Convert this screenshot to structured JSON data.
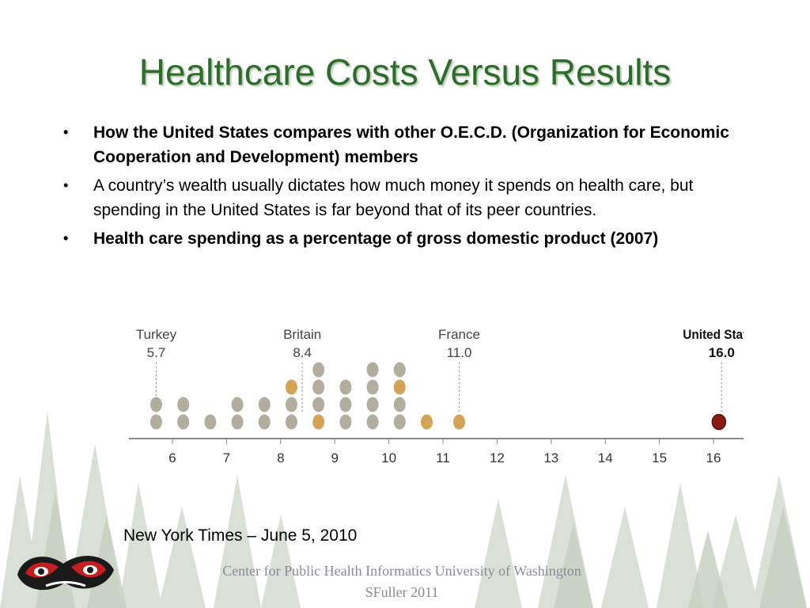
{
  "slide": {
    "title": "Healthcare Costs Versus Results",
    "bullets": [
      {
        "text": "How the United States compares with other O.E.C.D. (Organization for Economic Cooperation and Development) members",
        "bold": true
      },
      {
        "text": "A country’s wealth usually dictates how much money it spends on health care, but spending in the United States is far beyond that of its peer countries.",
        "bold": false
      },
      {
        "text": "Health care spending as a percentage of gross domestic product (2007)",
        "bold": true
      }
    ],
    "source": "New York Times – June 5, 2010",
    "footer_line1": "Center for Public Health Informatics University of Washington",
    "footer_line2": "SFuller 2011",
    "bullet_glyph": "•"
  },
  "colors": {
    "title": "#2f6b2c",
    "dot_gray": "#b3ad9f",
    "dot_highlight": "#d3a356",
    "dot_us": "#8b1a14"
  },
  "chart_data": {
    "type": "scatter",
    "subtype": "dot-strip",
    "xlim": [
      5.5,
      16.5
    ],
    "xticks": [
      6,
      7,
      8,
      9,
      10,
      11,
      12,
      13,
      14,
      15,
      16
    ],
    "points": [
      {
        "x": 5.7,
        "count": 2,
        "highlight": 0
      },
      {
        "x": 6.2,
        "count": 2,
        "highlight": 0
      },
      {
        "x": 6.7,
        "count": 1,
        "highlight": 0
      },
      {
        "x": 7.2,
        "count": 2,
        "highlight": 0
      },
      {
        "x": 7.7,
        "count": 2,
        "highlight": 0
      },
      {
        "x": 8.2,
        "count": 3,
        "highlight": 3
      },
      {
        "x": 8.7,
        "count": 4,
        "highlight": 1
      },
      {
        "x": 9.2,
        "count": 3,
        "highlight": 0
      },
      {
        "x": 9.7,
        "count": 4,
        "highlight": 0
      },
      {
        "x": 10.2,
        "count": 4,
        "highlight": 3
      },
      {
        "x": 10.7,
        "count": 1,
        "highlight": 1
      },
      {
        "x": 11.3,
        "count": 1,
        "highlight": 1
      },
      {
        "x": 16.1,
        "count": 1,
        "highlight": 1,
        "us": true
      }
    ],
    "annotations": [
      {
        "label": "Turkey",
        "value": "5.7",
        "x": 5.7,
        "bold": false
      },
      {
        "label": "Britain",
        "value": "8.4",
        "x": 8.4,
        "bold": false
      },
      {
        "label": "France",
        "value": "11.0",
        "x": 11.3,
        "bold": false
      },
      {
        "label": "United States",
        "value": "16.0",
        "x": 16.15,
        "bold": true
      }
    ],
    "grid": false
  }
}
